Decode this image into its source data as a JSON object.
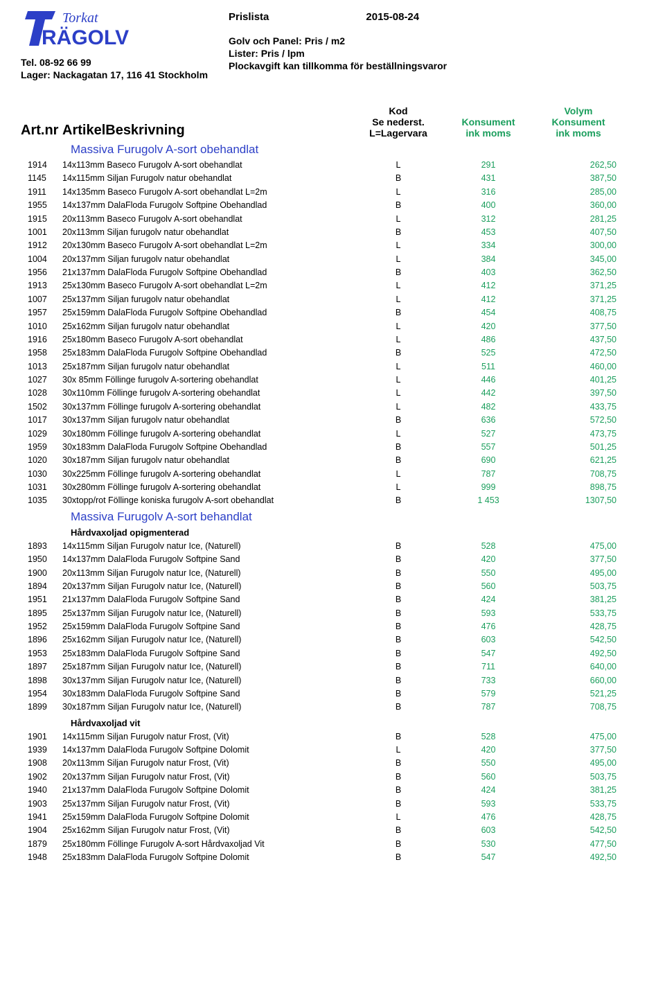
{
  "header": {
    "logo_top": "Torkat",
    "logo_bottom": "RÄGOLV",
    "tel": "Tel. 08-92 66 99",
    "lager": "Lager: Nackagatan 17, 116 41 Stockholm",
    "prislista": "Prislista",
    "date": "2015-08-24",
    "golvpanel": "Golv och Panel:    Pris / m2",
    "lister": "Lister:  Pris / lpm",
    "plock": "Plockavgift kan tillkomma för beställningsvaror"
  },
  "columns": {
    "art": "Art.nr",
    "desc": "ArtikelBeskrivning",
    "kod1": "Kod",
    "kod2": "Se nederst.",
    "kod3": "L=Lagervara",
    "kons1": "Konsument",
    "kons2": "ink moms",
    "vol1": "Volym",
    "vol2": "Konsument",
    "vol3": "ink moms"
  },
  "sections": [
    {
      "title": "Massiva Furugolv A-sort obehandlat",
      "rows": [
        {
          "art": "1914",
          "desc": "14x113mm Baseco  Furugolv A-sort obehandlat",
          "kod": "L",
          "kons": "291",
          "vol": "262,50"
        },
        {
          "art": "1145",
          "desc": "14x115mm Siljan Furugolv natur obehandlat",
          "kod": "B",
          "kons": "431",
          "vol": "387,50"
        },
        {
          "art": "1911",
          "desc": "14x135mm Baseco  Furugolv A-sort obehandlat L=2m",
          "kod": "L",
          "kons": "316",
          "vol": "285,00"
        },
        {
          "art": "1955",
          "desc": "14x137mm DalaFloda Furugolv Softpine Obehandlad",
          "kod": "B",
          "kons": "400",
          "vol": "360,00"
        },
        {
          "art": "1915",
          "desc": "20x113mm Baseco  Furugolv A-sort obehandlat",
          "kod": "L",
          "kons": "312",
          "vol": "281,25"
        },
        {
          "art": "1001",
          "desc": "20x113mm Siljan furugolv natur obehandlat",
          "kod": "B",
          "kons": "453",
          "vol": "407,50"
        },
        {
          "art": "1912",
          "desc": "20x130mm Baseco  Furugolv A-sort obehandlat L=2m",
          "kod": "L",
          "kons": "334",
          "vol": "300,00"
        },
        {
          "art": "1004",
          "desc": "20x137mm Siljan furugolv natur obehandlat",
          "kod": "L",
          "kons": "384",
          "vol": "345,00"
        },
        {
          "art": "1956",
          "desc": "21x137mm DalaFloda Furugolv Softpine Obehandlad",
          "kod": "B",
          "kons": "403",
          "vol": "362,50"
        },
        {
          "art": "1913",
          "desc": "25x130mm Baseco  Furugolv A-sort obehandlat L=2m",
          "kod": "L",
          "kons": "412",
          "vol": "371,25"
        },
        {
          "art": "1007",
          "desc": "25x137mm Siljan furugolv natur obehandlat",
          "kod": "L",
          "kons": "412",
          "vol": "371,25"
        },
        {
          "art": "1957",
          "desc": "25x159mm DalaFloda Furugolv Softpine Obehandlad",
          "kod": "B",
          "kons": "454",
          "vol": "408,75"
        },
        {
          "art": "1010",
          "desc": "25x162mm Siljan furugolv natur obehandlat",
          "kod": "L",
          "kons": "420",
          "vol": "377,50"
        },
        {
          "art": "1916",
          "desc": "25x180mm Baseco  Furugolv A-sort obehandlat",
          "kod": "L",
          "kons": "486",
          "vol": "437,50"
        },
        {
          "art": "1958",
          "desc": "25x183mm DalaFloda Furugolv Softpine Obehandlad",
          "kod": "B",
          "kons": "525",
          "vol": "472,50"
        },
        {
          "art": "1013",
          "desc": "25x187mm Siljan furugolv natur obehandlat",
          "kod": "L",
          "kons": "511",
          "vol": "460,00"
        },
        {
          "art": "1027",
          "desc": "30x 85mm Föllinge furugolv A-sortering obehandlat",
          "kod": "L",
          "kons": "446",
          "vol": "401,25"
        },
        {
          "art": "1028",
          "desc": "30x110mm Föllinge furugolv A-sortering obehandlat",
          "kod": "L",
          "kons": "442",
          "vol": "397,50"
        },
        {
          "art": "1502",
          "desc": "30x137mm Föllinge furugolv A-sortering obehandlat",
          "kod": "L",
          "kons": "482",
          "vol": "433,75"
        },
        {
          "art": "1017",
          "desc": "30x137mm Siljan furugolv natur obehandlat",
          "kod": "B",
          "kons": "636",
          "vol": "572,50"
        },
        {
          "art": "1029",
          "desc": "30x180mm Föllinge furugolv A-sortering obehandlat",
          "kod": "L",
          "kons": "527",
          "vol": "473,75"
        },
        {
          "art": "1959",
          "desc": "30x183mm DalaFloda Furugolv Softpine Obehandlad",
          "kod": "B",
          "kons": "557",
          "vol": "501,25"
        },
        {
          "art": "1020",
          "desc": "30x187mm Siljan furugolv natur obehandlat",
          "kod": "B",
          "kons": "690",
          "vol": "621,25"
        },
        {
          "art": "1030",
          "desc": "30x225mm Föllinge furugolv A-sortering obehandlat",
          "kod": "L",
          "kons": "787",
          "vol": "708,75"
        },
        {
          "art": "1031",
          "desc": "30x280mm Föllinge furugolv A-sortering obehandlat",
          "kod": "L",
          "kons": "999",
          "vol": "898,75"
        },
        {
          "art": "1035",
          "desc": "30xtopp/rot  Föllinge koniska furugolv A-sort obehandlat",
          "kod": "B",
          "kons": "1 453",
          "vol": "1307,50"
        }
      ]
    },
    {
      "title": "Massiva Furugolv A-sort behandlat",
      "subsections": [
        {
          "subtitle": "Hårdvaxoljad opigmenterad",
          "rows": [
            {
              "art": "1893",
              "desc": "14x115mm Siljan Furugolv natur Ice, (Naturell)",
              "kod": "B",
              "kons": "528",
              "vol": "475,00"
            },
            {
              "art": "1950",
              "desc": "14x137mm DalaFloda Furugolv Softpine Sand",
              "kod": "B",
              "kons": "420",
              "vol": "377,50"
            },
            {
              "art": "1900",
              "desc": "20x113mm Siljan Furugolv natur Ice, (Naturell)",
              "kod": "B",
              "kons": "550",
              "vol": "495,00"
            },
            {
              "art": "1894",
              "desc": "20x137mm Siljan Furugolv natur Ice, (Naturell)",
              "kod": "B",
              "kons": "560",
              "vol": "503,75"
            },
            {
              "art": "1951",
              "desc": "21x137mm DalaFloda Furugolv Softpine Sand",
              "kod": "B",
              "kons": "424",
              "vol": "381,25"
            },
            {
              "art": "1895",
              "desc": "25x137mm Siljan Furugolv natur Ice, (Naturell)",
              "kod": "B",
              "kons": "593",
              "vol": "533,75"
            },
            {
              "art": "1952",
              "desc": "25x159mm DalaFloda Furugolv Softpine Sand",
              "kod": "B",
              "kons": "476",
              "vol": "428,75"
            },
            {
              "art": "1896",
              "desc": "25x162mm Siljan Furugolv natur Ice, (Naturell)",
              "kod": "B",
              "kons": "603",
              "vol": "542,50"
            },
            {
              "art": "1953",
              "desc": "25x183mm DalaFloda Furugolv Softpine Sand",
              "kod": "B",
              "kons": "547",
              "vol": "492,50"
            },
            {
              "art": "1897",
              "desc": "25x187mm Siljan Furugolv natur Ice, (Naturell)",
              "kod": "B",
              "kons": "711",
              "vol": "640,00"
            },
            {
              "art": "1898",
              "desc": "30x137mm Siljan Furugolv natur Ice, (Naturell)",
              "kod": "B",
              "kons": "733",
              "vol": "660,00"
            },
            {
              "art": "1954",
              "desc": "30x183mm DalaFloda Furugolv Softpine Sand",
              "kod": "B",
              "kons": "579",
              "vol": "521,25"
            },
            {
              "art": "1899",
              "desc": "30x187mm Siljan Furugolv natur Ice, (Naturell)",
              "kod": "B",
              "kons": "787",
              "vol": "708,75"
            }
          ]
        },
        {
          "subtitle": "Hårdvaxoljad vit",
          "rows": [
            {
              "art": "1901",
              "desc": "14x115mm Siljan Furugolv natur Frost, (Vit)",
              "kod": "B",
              "kons": "528",
              "vol": "475,00"
            },
            {
              "art": "1939",
              "desc": "14x137mm DalaFloda Furugolv Softpine Dolomit",
              "kod": "L",
              "kons": "420",
              "vol": "377,50"
            },
            {
              "art": "1908",
              "desc": "20x113mm Siljan Furugolv natur Frost, (Vit)",
              "kod": "B",
              "kons": "550",
              "vol": "495,00"
            },
            {
              "art": "1902",
              "desc": "20x137mm Siljan Furugolv natur Frost, (Vit)",
              "kod": "B",
              "kons": "560",
              "vol": "503,75"
            },
            {
              "art": "1940",
              "desc": "21x137mm DalaFloda Furugolv Softpine Dolomit",
              "kod": "B",
              "kons": "424",
              "vol": "381,25"
            },
            {
              "art": "1903",
              "desc": "25x137mm Siljan Furugolv natur Frost, (Vit)",
              "kod": "B",
              "kons": "593",
              "vol": "533,75"
            },
            {
              "art": "1941",
              "desc": "25x159mm DalaFloda Furugolv Softpine Dolomit",
              "kod": "L",
              "kons": "476",
              "vol": "428,75"
            },
            {
              "art": "1904",
              "desc": "25x162mm Siljan Furugolv natur Frost, (Vit)",
              "kod": "B",
              "kons": "603",
              "vol": "542,50"
            },
            {
              "art": "1879",
              "desc": "25x180mm Föllinge Furugolv A-sort Hårdvaxoljad Vit",
              "kod": "B",
              "kons": "530",
              "vol": "477,50"
            },
            {
              "art": "1948",
              "desc": "25x183mm DalaFloda Furugolv Softpine Dolomit",
              "kod": "B",
              "kons": "547",
              "vol": "492,50"
            }
          ]
        }
      ]
    }
  ],
  "colors": {
    "brand_blue": "#2c3fc7",
    "green": "#1a9e5c",
    "text": "#000000",
    "background": "#ffffff"
  }
}
